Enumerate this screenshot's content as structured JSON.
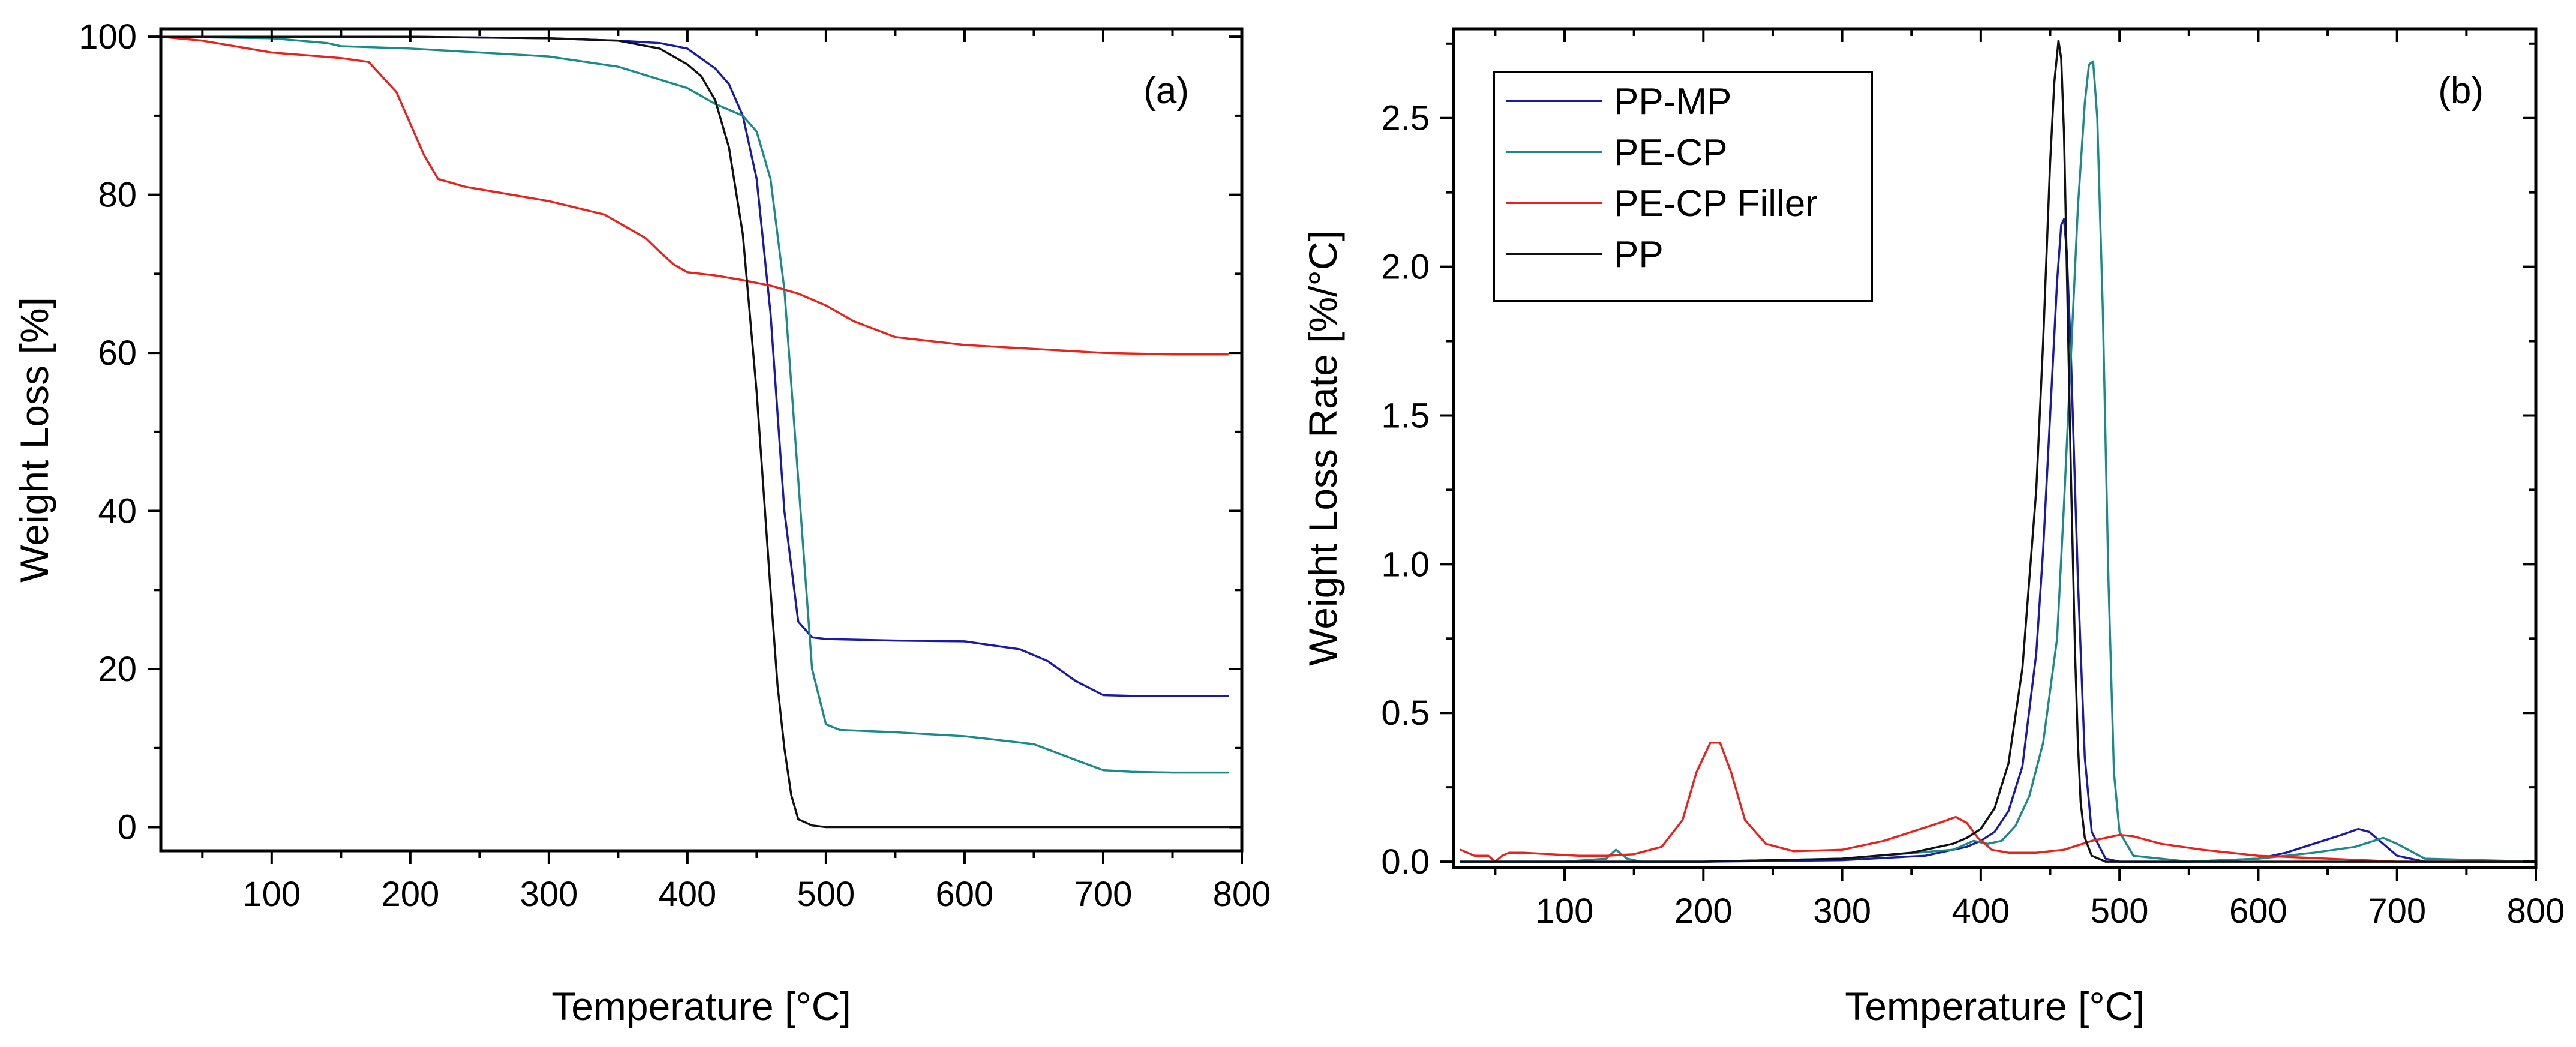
{
  "chart_data": [
    {
      "type": "line",
      "panel_label": "(a)",
      "xlabel": "Temperature [°C]",
      "ylabel": "Weight Loss [%]",
      "xlim": [
        20,
        800
      ],
      "ylim": [
        -3,
        101
      ],
      "xticks": [
        100,
        200,
        300,
        400,
        500,
        600,
        700,
        800
      ],
      "yticks": [
        0,
        20,
        40,
        60,
        80,
        100
      ],
      "xtick_labels": [
        "100",
        "200",
        "300",
        "400",
        "500",
        "600",
        "700",
        "800"
      ],
      "ytick_labels": [
        "0",
        "20",
        "40",
        "60",
        "80",
        "100"
      ],
      "series": [
        {
          "name": "PP-MP",
          "color": "#1a1aa6",
          "x": [
            20,
            100,
            200,
            300,
            350,
            380,
            400,
            420,
            430,
            440,
            450,
            460,
            470,
            480,
            490,
            500,
            550,
            600,
            640,
            660,
            680,
            700,
            720,
            750,
            790
          ],
          "y": [
            100,
            100,
            100,
            99.8,
            99.5,
            99.2,
            98.5,
            96,
            94,
            90,
            82,
            65,
            40,
            26,
            24,
            23.8,
            23.6,
            23.5,
            22.5,
            21,
            18.5,
            16.7,
            16.6,
            16.6,
            16.6
          ]
        },
        {
          "name": "PE-CP",
          "color": "#1a8a8a",
          "x": [
            20,
            100,
            140,
            150,
            200,
            300,
            350,
            400,
            420,
            440,
            450,
            460,
            470,
            480,
            490,
            500,
            510,
            550,
            600,
            650,
            680,
            700,
            720,
            750,
            790
          ],
          "y": [
            100,
            99.8,
            99.2,
            98.8,
            98.5,
            97.5,
            96.2,
            93.5,
            91.5,
            90,
            88,
            82,
            68,
            44,
            20,
            13,
            12.3,
            12,
            11.5,
            10.5,
            8.5,
            7.2,
            7,
            6.9,
            6.9
          ]
        },
        {
          "name": "PE-CP Filler",
          "color": "#e8231c",
          "x": [
            20,
            50,
            100,
            150,
            170,
            190,
            200,
            210,
            220,
            240,
            260,
            300,
            340,
            370,
            380,
            390,
            400,
            420,
            440,
            460,
            480,
            500,
            520,
            550,
            600,
            650,
            700,
            750,
            790
          ],
          "y": [
            100,
            99.5,
            98,
            97.3,
            96.8,
            93,
            89,
            85,
            82,
            81,
            80.4,
            79.2,
            77.5,
            74.5,
            72.8,
            71.2,
            70.2,
            69.8,
            69.2,
            68.5,
            67.5,
            66,
            64,
            62,
            61,
            60.5,
            60,
            59.8,
            59.8
          ]
        },
        {
          "name": "PP",
          "color": "#111111",
          "x": [
            20,
            100,
            200,
            300,
            350,
            380,
            400,
            410,
            420,
            430,
            440,
            450,
            460,
            465,
            470,
            475,
            480,
            490,
            500,
            550,
            600,
            700,
            790
          ],
          "y": [
            100,
            100,
            100,
            99.8,
            99.5,
            98.5,
            96.5,
            95,
            92,
            86,
            75,
            55,
            30,
            18,
            10,
            4,
            1,
            0.2,
            0,
            0,
            0,
            0,
            0
          ]
        }
      ]
    },
    {
      "type": "line",
      "panel_label": "(b)",
      "xlabel": "Temperature [°C]",
      "ylabel": "Weight Loss Rate [%/°C]",
      "xlim": [
        20,
        800
      ],
      "ylim": [
        -0.02,
        2.8
      ],
      "xticks": [
        100,
        200,
        300,
        400,
        500,
        600,
        700,
        800
      ],
      "yticks": [
        0.0,
        0.5,
        1.0,
        1.5,
        2.0,
        2.5
      ],
      "xtick_labels": [
        "100",
        "200",
        "300",
        "400",
        "500",
        "600",
        "700",
        "800"
      ],
      "ytick_labels": [
        "0.0",
        "0.5",
        "1.0",
        "1.5",
        "2.0",
        "2.5"
      ],
      "legend": {
        "position": "top-left"
      },
      "series": [
        {
          "name": "PP-MP",
          "color": "#1a1aa6",
          "x": [
            25,
            100,
            200,
            300,
            360,
            390,
            400,
            410,
            420,
            430,
            440,
            445,
            450,
            455,
            458,
            460,
            462,
            465,
            470,
            475,
            480,
            490,
            500,
            550,
            600,
            620,
            640,
            660,
            672,
            680,
            690,
            700,
            720,
            800
          ],
          "y": [
            0,
            0,
            0,
            0.005,
            0.02,
            0.05,
            0.07,
            0.1,
            0.17,
            0.32,
            0.7,
            1.05,
            1.5,
            1.95,
            2.14,
            2.16,
            2.05,
            1.7,
            0.95,
            0.35,
            0.1,
            0.01,
            0,
            0,
            0.01,
            0.03,
            0.06,
            0.09,
            0.11,
            0.1,
            0.06,
            0.02,
            0,
            0
          ]
        },
        {
          "name": "PE-CP",
          "color": "#1a8a8a",
          "x": [
            25,
            100,
            130,
            137,
            145,
            155,
            200,
            300,
            380,
            395,
            405,
            415,
            425,
            435,
            445,
            455,
            460,
            465,
            470,
            475,
            478,
            481,
            484,
            488,
            492,
            496,
            500,
            510,
            550,
            600,
            640,
            670,
            690,
            700,
            720,
            800
          ],
          "y": [
            0,
            0,
            0.01,
            0.04,
            0.01,
            0,
            0,
            0.01,
            0.04,
            0.07,
            0.06,
            0.07,
            0.12,
            0.22,
            0.4,
            0.75,
            1.2,
            1.7,
            2.2,
            2.55,
            2.68,
            2.69,
            2.5,
            1.85,
            0.95,
            0.3,
            0.1,
            0.02,
            0,
            0.01,
            0.03,
            0.05,
            0.08,
            0.06,
            0.01,
            0
          ]
        },
        {
          "name": "PE-CP Filler",
          "color": "#e8231c",
          "x": [
            25,
            35,
            45,
            50,
            55,
            60,
            70,
            90,
            110,
            130,
            150,
            170,
            185,
            195,
            205,
            212,
            220,
            230,
            245,
            265,
            300,
            330,
            350,
            370,
            382,
            390,
            398,
            408,
            420,
            440,
            460,
            480,
            500,
            510,
            530,
            560,
            600,
            650,
            700,
            800
          ],
          "y": [
            0.04,
            0.02,
            0.02,
            0.0,
            0.02,
            0.03,
            0.03,
            0.025,
            0.02,
            0.02,
            0.025,
            0.05,
            0.14,
            0.3,
            0.4,
            0.4,
            0.3,
            0.14,
            0.06,
            0.035,
            0.04,
            0.07,
            0.1,
            0.13,
            0.15,
            0.13,
            0.08,
            0.04,
            0.03,
            0.03,
            0.04,
            0.07,
            0.09,
            0.085,
            0.06,
            0.04,
            0.02,
            0.01,
            0,
            0
          ]
        },
        {
          "name": "PP",
          "color": "#111111",
          "x": [
            25,
            100,
            200,
            300,
            350,
            380,
            390,
            400,
            410,
            420,
            430,
            440,
            445,
            450,
            453,
            456,
            458,
            460,
            462,
            465,
            468,
            470,
            472,
            475,
            480,
            490,
            500,
            800
          ],
          "y": [
            0,
            0,
            0,
            0.01,
            0.03,
            0.06,
            0.08,
            0.11,
            0.18,
            0.33,
            0.65,
            1.25,
            1.75,
            2.35,
            2.62,
            2.76,
            2.7,
            2.45,
            2.0,
            1.3,
            0.7,
            0.4,
            0.2,
            0.08,
            0.02,
            0,
            0,
            0
          ]
        }
      ]
    }
  ]
}
